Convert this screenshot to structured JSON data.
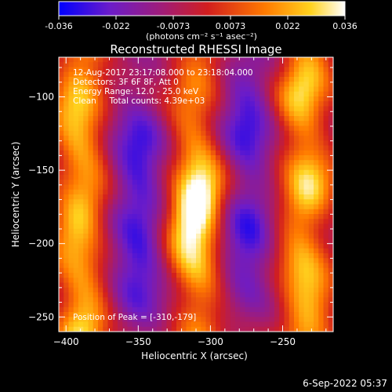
{
  "colorbar": {
    "ticks": [
      "-0.036",
      "-0.022",
      "-0.0073",
      "0.0073",
      "0.022",
      "0.036"
    ],
    "unit_label": "(photons cm⁻² s⁻¹ asec⁻²)",
    "stops": [
      "#0000ff",
      "#6c1cc8",
      "#a01c78",
      "#d21e1e",
      "#ff7a00",
      "#ffd21e",
      "#ffffff"
    ]
  },
  "plot": {
    "title": "Reconstructed RHESSI Image",
    "info_lines": [
      "12-Aug-2017 23:17:08.000 to 23:18:04.000",
      "Detectors: 3F 6F 8F, Att 0",
      "Energy Range: 12.0 - 25.0 keV",
      "Clean     Total counts: 4.39e+03"
    ],
    "peak_label": "Position of Peak = [-310,-179]"
  },
  "footer": {
    "date": "6-Sep-2022 05:37"
  },
  "chart_data": {
    "type": "heatmap",
    "title": "Reconstructed RHESSI Image",
    "xlabel": "Heliocentric X (arcsec)",
    "ylabel": "Heliocentric Y (arcsec)",
    "xlim": [
      -405,
      -215
    ],
    "ylim": [
      -260,
      -73
    ],
    "x_ticks": [
      -400,
      -350,
      -300,
      -250
    ],
    "y_ticks": [
      -250,
      -200,
      -150,
      -100
    ],
    "colorbar_range": [
      -0.036,
      0.036
    ],
    "colorbar_unit": "photons cm^-2 s^-1 asec^-2",
    "peak": [
      -310,
      -179
    ],
    "features": [
      {
        "kind": "bright-ridge",
        "x": -390
      },
      {
        "kind": "dark-lobe",
        "x": -350,
        "y": -140
      },
      {
        "kind": "dark-lobe",
        "x": -350,
        "y": -215
      },
      {
        "kind": "bright-ridge",
        "x": -310
      },
      {
        "kind": "dark-lobe",
        "x": -275,
        "y": -115
      },
      {
        "kind": "dark-lobe",
        "x": -275,
        "y": -200
      },
      {
        "kind": "bright-ridge",
        "x": -235
      }
    ]
  }
}
